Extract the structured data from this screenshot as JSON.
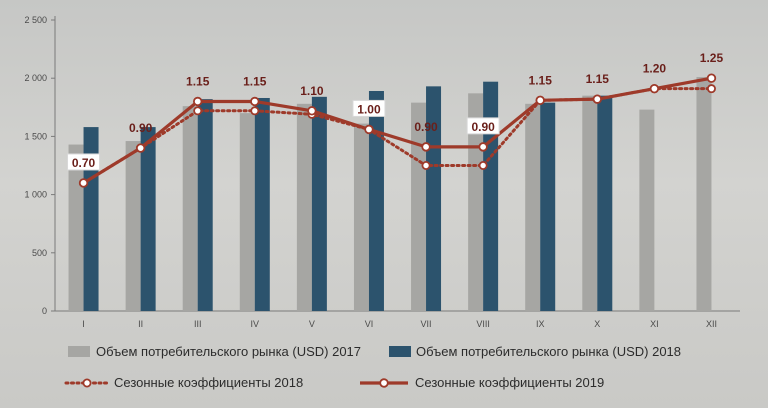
{
  "chart_data": {
    "type": "bar",
    "categories": [
      "I",
      "II",
      "III",
      "IV",
      "V",
      "VI",
      "VII",
      "VIII",
      "IX",
      "X",
      "XI",
      "XII"
    ],
    "ylim": [
      0,
      2500
    ],
    "yticks": [
      "0",
      "500",
      "1 000",
      "1 500",
      "2 000",
      "2 500"
    ],
    "ytick_values": [
      0,
      500,
      1000,
      1500,
      2000,
      2500
    ],
    "grid": false,
    "legend_position": "bottom",
    "series": [
      {
        "name": "Объем потребительского рынка (USD) 2017",
        "kind": "bar",
        "color": "#a6a6a3",
        "values": [
          1430,
          1460,
          1760,
          1700,
          1780,
          1610,
          1790,
          1870,
          1780,
          1850,
          1730,
          2010
        ]
      },
      {
        "name": "Объем потребительского рынка (USD) 2018",
        "kind": "bar",
        "color": "#2c536d",
        "values": [
          1580,
          1580,
          1820,
          1830,
          1840,
          1890,
          1930,
          1970,
          1790,
          1850,
          null,
          null
        ]
      },
      {
        "name": "Сезонные коэффициенты 2018",
        "kind": "line",
        "style": "dotted",
        "color": "#9e3a2a",
        "values": [
          1100,
          1400,
          1720,
          1720,
          1690,
          1560,
          1250,
          1250,
          1810,
          1820,
          1910,
          1910
        ]
      },
      {
        "name": "Сезонные коэффициенты 2019",
        "kind": "line",
        "style": "solid",
        "color": "#9e3a2a",
        "values": [
          1100,
          1400,
          1800,
          1800,
          1720,
          1560,
          1410,
          1410,
          1810,
          1820,
          1910,
          2000
        ],
        "labels": [
          "0.70",
          "0.90",
          "1.15",
          "1.15",
          "1.10",
          "1.00",
          "0.90",
          "0.90",
          "1.15",
          "1.15",
          "1.20",
          "1.25"
        ],
        "boxed_labels": [
          true,
          false,
          false,
          false,
          false,
          true,
          false,
          true,
          false,
          false,
          false,
          false
        ]
      }
    ]
  }
}
